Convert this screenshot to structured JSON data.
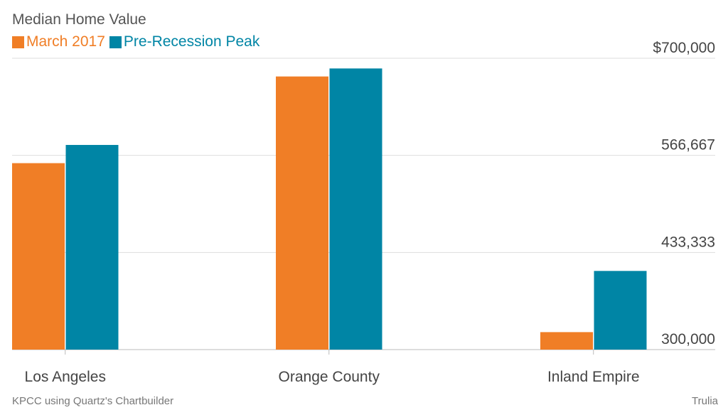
{
  "title": "Median Home Value",
  "chart_data": {
    "type": "bar",
    "categories": [
      "Los Angeles",
      "Orange County",
      "Inland Empire"
    ],
    "series": [
      {
        "name": "March 2017",
        "color": "#f07e26",
        "values": [
          556000,
          675000,
          324000
        ]
      },
      {
        "name": "Pre-Recession Peak",
        "color": "#0085a5",
        "values": [
          581000,
          686000,
          408000
        ]
      }
    ],
    "ylim": [
      300000,
      700000
    ],
    "yticks": [
      {
        "value": 300000,
        "label": "300,000"
      },
      {
        "value": 433333,
        "label": "433,333"
      },
      {
        "value": 566667,
        "label": "566,667"
      },
      {
        "value": 700000,
        "label": "$700,000"
      }
    ],
    "grid": true,
    "legend": "top-left"
  },
  "footer": {
    "source_left": "KPCC using Quartz's Chartbuilder",
    "source_right": "Trulia"
  }
}
